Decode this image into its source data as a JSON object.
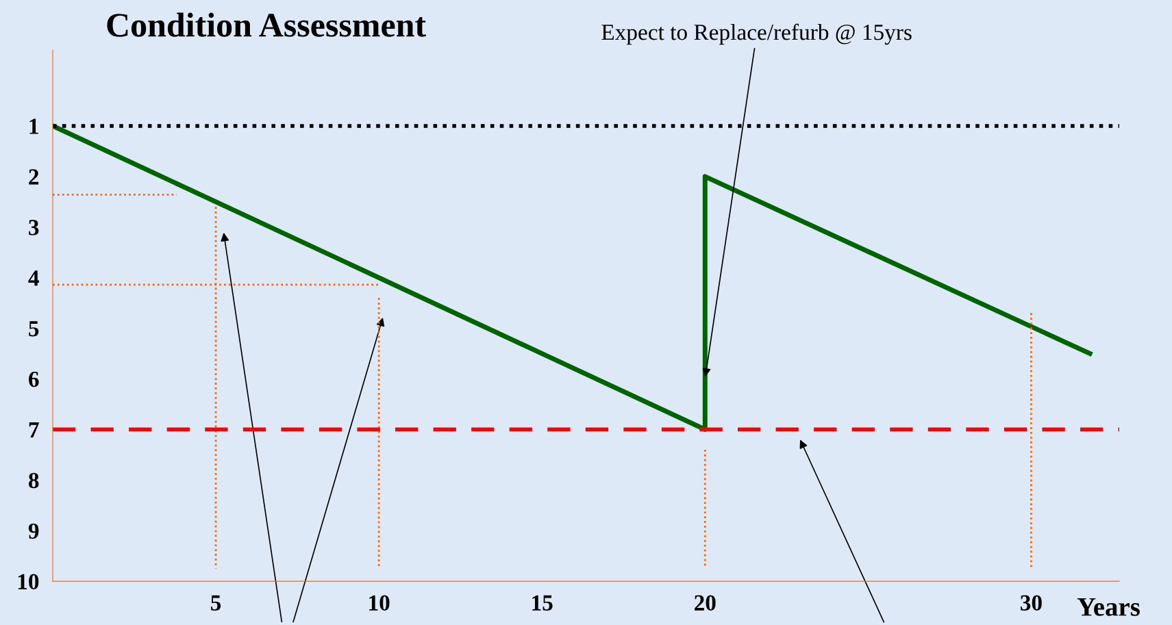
{
  "chart_data": {
    "type": "line",
    "title": "Condition Assessment",
    "xlabel": "Years",
    "xlim": [
      0,
      32.7
    ],
    "xticks": [
      5,
      10,
      15,
      20,
      30
    ],
    "ylim": [
      10,
      -0.5
    ],
    "yticks": [
      1,
      2,
      3,
      4,
      5,
      6,
      7,
      8,
      9,
      10
    ],
    "grid": false,
    "series": [
      {
        "color": "#006400",
        "x": [
          0,
          20,
          20,
          31.8
        ],
        "values": [
          1,
          7,
          2,
          5.5
        ],
        "line_style": "solid"
      },
      {
        "type": "line",
        "color": "#ff6600",
        "line_style": "dotted",
        "x": [
          0,
          3.8
        ],
        "values": [
          2.36,
          2.36
        ]
      },
      {
        "type": "line",
        "color": "#ff6600",
        "line_style": "dotted",
        "x": [
          5,
          5
        ],
        "values": [
          2.6,
          9.75
        ]
      },
      {
        "type": "line",
        "color": "#ff6600",
        "line_style": "dotted",
        "x": [
          0,
          10
        ],
        "values": [
          4.14,
          4.14
        ]
      },
      {
        "type": "line",
        "color": "#ff6600",
        "line_style": "dotted",
        "x": [
          10,
          10
        ],
        "values": [
          4.4,
          9.75
        ]
      },
      {
        "type": "line",
        "color": "#ff6600",
        "line_style": "dotted",
        "x": [
          20,
          20
        ],
        "values": [
          7.4,
          9.75
        ]
      },
      {
        "type": "line",
        "color": "#ff6600",
        "line_style": "dotted",
        "x": [
          30,
          30
        ],
        "values": [
          4.7,
          9.75
        ]
      }
    ],
    "ref_lines": [
      {
        "axis": "y",
        "value": 1,
        "color": "#000000",
        "line_style": "dotted"
      },
      {
        "axis": "y",
        "value": 7,
        "color": "#ff0000",
        "line_style": "dashed"
      }
    ],
    "annotations": [
      {
        "text": "Expect to Replace/refurb @ 15yrs",
        "x": 20,
        "y": 6.0
      }
    ]
  }
}
